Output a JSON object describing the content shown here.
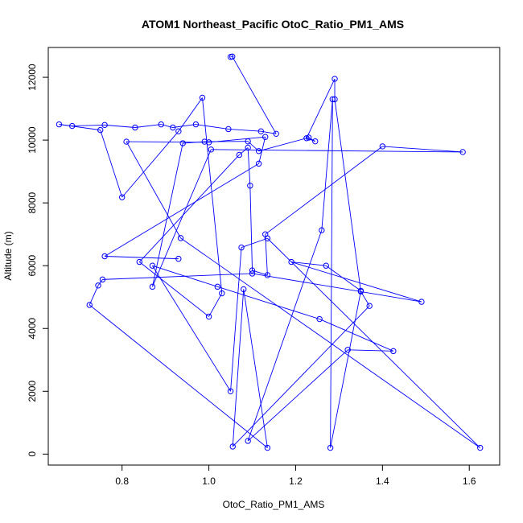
{
  "chart_data": {
    "type": "scatter",
    "title": "ATOM1 Northeast_Pacific OtoC_Ratio_PM1_AMS",
    "xlabel": "OtoC_Ratio_PM1_AMS",
    "ylabel": "Altitude (m)",
    "xlim": [
      0.63,
      1.67
    ],
    "ylim": [
      -350,
      12950
    ],
    "x_ticks": [
      0.8,
      1.0,
      1.2,
      1.4,
      1.6
    ],
    "x_tick_labels": [
      "0.8",
      "1.0",
      "1.2",
      "1.4",
      "1.6"
    ],
    "y_ticks": [
      0,
      2000,
      4000,
      6000,
      8000,
      10000,
      12000
    ],
    "y_tick_labels": [
      "0",
      "2000",
      "4000",
      "6000",
      "8000",
      "10000",
      "12000"
    ],
    "grid": false,
    "legend": "none",
    "connected": true,
    "colors": {
      "series": "#0000ff",
      "axes": "#000000",
      "background": "#ffffff"
    },
    "x": [
      1.05,
      1.054,
      1.155,
      1.12,
      1.045,
      0.97,
      0.917,
      0.89,
      0.83,
      0.76,
      0.685,
      0.655,
      0.75,
      0.8,
      0.93,
      0.985,
      1.03,
      1.0,
      0.84,
      1.07,
      1.09,
      1.095,
      1.1,
      1.135,
      1.13,
      1.4,
      1.585,
      1.005,
      0.87,
      0.94,
      0.99,
      1.09,
      1.115,
      1.23,
      1.245,
      1.225,
      1.29,
      1.29,
      1.35,
      1.27,
      1.19,
      1.49,
      1.1,
      0.755,
      0.745,
      0.725,
      1.135,
      1.08,
      1.055,
      1.37,
      1.35,
      1.28,
      1.285,
      1.26,
      1.09,
      1.32,
      1.425,
      1.255,
      1.02,
      0.87,
      1.05,
      1.075,
      1.135,
      1.625,
      0.935,
      0.81,
      1.0,
      1.13,
      1.115,
      0.76,
      0.93
    ],
    "y": [
      12650,
      12660,
      10200,
      10280,
      10350,
      10500,
      10400,
      10500,
      10400,
      10480,
      10450,
      10500,
      10320,
      8180,
      10280,
      11350,
      5120,
      4380,
      6120,
      9530,
      9760,
      8550,
      5850,
      5700,
      7000,
      9800,
      9620,
      9700,
      5330,
      9900,
      9950,
      9960,
      9650,
      10080,
      9960,
      10060,
      11950,
      11300,
      5200,
      6000,
      6120,
      4850,
      5750,
      5560,
      5370,
      4750,
      200,
      5250,
      240,
      4720,
      5180,
      200,
      11300,
      7130,
      420,
      3320,
      3280,
      4300,
      5330,
      6000,
      2000,
      6580,
      6870,
      200,
      6880,
      9950,
      9930,
      10100,
      9250,
      6300,
      6220
    ]
  }
}
